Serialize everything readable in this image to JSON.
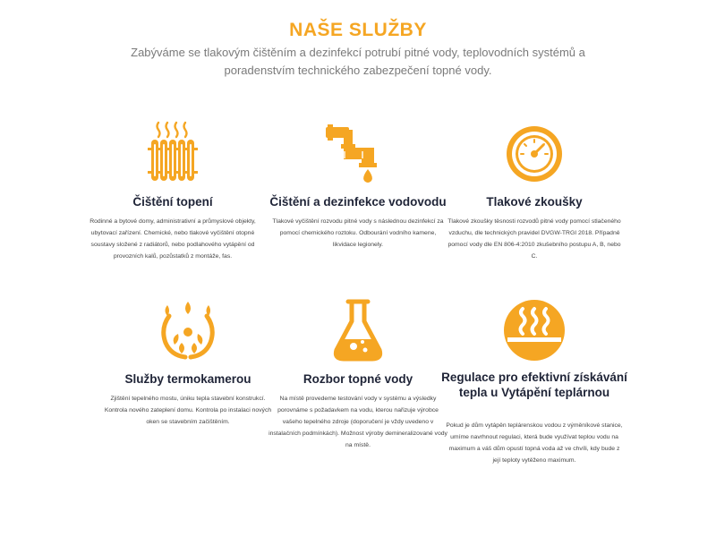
{
  "section": {
    "title": "NAŠE SLUŽBY",
    "subtitle": "Zabýváme se tlakovým čištěním a dezinfekcí potrubí pitné vody, teplovodních systémů a poradenstvím technického zabezpečení topné vody."
  },
  "colors": {
    "accent": "#f5a623",
    "heading": "#1f2437",
    "text": "#444444",
    "subtitle": "#7a7a7a"
  },
  "services": [
    {
      "icon": "radiator-icon",
      "title": "Čištění topení",
      "text": "Rodinné a bytové domy, administrativní a průmyslové objekty, ubytovací zařízení. Chemické, nebo tlakové vyčištění otopné soustavy složené z radiátorů, nebo podlahového vytápění od provozních kalů, pozůstatků z montáže, fas."
    },
    {
      "icon": "pipe-drop-icon",
      "title": "Čištění a dezinfekce vodovodu",
      "text": "Tlakové vyčištění rozvodu pitné vody s následnou dezinfekcí za pomocí chemického roztoku. Odbourání vodního kamene, likvidace legionely."
    },
    {
      "icon": "pressure-gauge-icon",
      "title": "Tlakové zkoušky",
      "text": "Tlakové zkoušky těsnosti rozvodů pitné vody pomocí stlačeného vzduchu, dle technických pravidel DVGW-TRGI 2018. Případně pomocí vody dle EN 806-4:2010 zkušebního postupu A, B, nebo C."
    },
    {
      "icon": "thermal-camera-icon",
      "title": "Služby termokamerou",
      "text": "Zjištění tepelného mostu, úniku tepla stavební konstrukcí. Kontrola nového zateplení domu. Kontrola po instalaci nových oken se stavebním začištěním."
    },
    {
      "icon": "lab-flask-icon",
      "title": "Rozbor topné vody",
      "text": "Na místě provedeme testování vody v systému a výsledky porovnáme s požadavkem na vodu, kterou nařizuje výrobce vašeho tepelného zdroje (doporučení je vždy uvedeno v instalačních podmínkách). Možnost výroby demineralizované vody na místě."
    },
    {
      "icon": "heat-waves-icon",
      "title": "Regulace pro efektivní získávání tepla u Vytápění teplárnou",
      "text": "Pokud je dům vytápěn teplárenskou vodou z výměníkové stanice, umíme navrhnout regulaci, která bude využívat teplou vodu na maximum a váš dům opustí topná voda až ve chvíli, kdy bude z její teploty vytěženo maximum."
    }
  ]
}
